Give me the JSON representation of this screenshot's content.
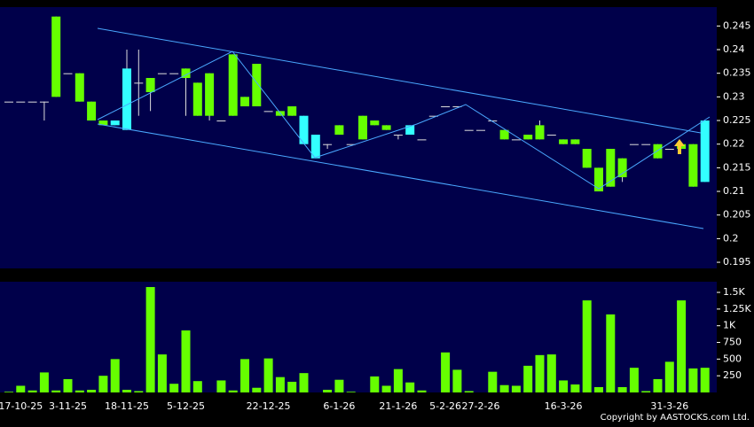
{
  "chart_data": [
    {
      "type": "candlestick",
      "categories": [
        null,
        "17-10-25",
        null,
        null,
        null,
        "3-11-25",
        null,
        null,
        null,
        null,
        "18-11-25",
        null,
        null,
        null,
        null,
        "5-12-25",
        null,
        null,
        null,
        null,
        null,
        null,
        "22-12-25",
        null,
        null,
        null,
        null,
        null,
        "6-1-26",
        null,
        null,
        null,
        null,
        "21-1-26",
        null,
        null,
        null,
        "5-2-26",
        null,
        null,
        "27-2-26",
        null,
        null,
        null,
        null,
        null,
        null,
        "16-3-26",
        null,
        null,
        null,
        null,
        null,
        null,
        null,
        null,
        "31-3-26",
        null,
        null,
        null
      ],
      "open": [
        0.229,
        0.229,
        0.229,
        0.229,
        0.23,
        0.235,
        0.229,
        0.225,
        0.224,
        0.225,
        0.236,
        0.233,
        0.231,
        0.235,
        0.235,
        0.234,
        0.226,
        0.226,
        0.225,
        0.226,
        0.228,
        0.228,
        0.227,
        0.226,
        0.226,
        0.226,
        0.222,
        0.22,
        0.222,
        0.22,
        0.221,
        0.224,
        0.223,
        0.222,
        0.224,
        0.221,
        0.226,
        0.228,
        0.228,
        0.223,
        0.223,
        0.225,
        0.221,
        0.221,
        0.221,
        0.221,
        0.222,
        0.22,
        0.22,
        0.215,
        0.21,
        0.211,
        0.213,
        0.22,
        0.22,
        0.217,
        0.219,
        0.219,
        0.211,
        0.225
      ],
      "high": [
        0.229,
        0.229,
        0.229,
        0.229,
        0.247,
        0.235,
        0.235,
        0.229,
        0.225,
        0.225,
        0.24,
        0.24,
        0.234,
        0.235,
        0.235,
        0.236,
        0.233,
        0.235,
        0.225,
        0.239,
        0.23,
        0.237,
        0.227,
        0.227,
        0.228,
        0.226,
        0.222,
        0.22,
        0.224,
        0.22,
        0.226,
        0.225,
        0.224,
        0.222,
        0.224,
        0.221,
        0.226,
        0.228,
        0.228,
        0.223,
        0.223,
        0.225,
        0.223,
        0.221,
        0.222,
        0.225,
        0.222,
        0.221,
        0.221,
        0.219,
        0.215,
        0.219,
        0.217,
        0.22,
        0.22,
        0.22,
        0.219,
        0.22,
        0.22,
        0.225
      ],
      "low": [
        0.229,
        0.229,
        0.229,
        0.225,
        0.23,
        0.235,
        0.229,
        0.225,
        0.224,
        0.224,
        0.223,
        0.226,
        0.227,
        0.235,
        0.235,
        0.226,
        0.226,
        0.225,
        0.225,
        0.226,
        0.228,
        0.228,
        0.227,
        0.226,
        0.226,
        0.22,
        0.217,
        0.219,
        0.222,
        0.22,
        0.221,
        0.224,
        0.223,
        0.221,
        0.222,
        0.221,
        0.226,
        0.228,
        0.228,
        0.223,
        0.223,
        0.225,
        0.221,
        0.221,
        0.221,
        0.221,
        0.222,
        0.22,
        0.22,
        0.215,
        0.21,
        0.211,
        0.212,
        0.22,
        0.22,
        0.217,
        0.219,
        0.219,
        0.211,
        0.212
      ],
      "close": [
        0.229,
        0.229,
        0.229,
        0.229,
        0.247,
        0.235,
        0.235,
        0.229,
        0.225,
        0.224,
        0.223,
        0.233,
        0.234,
        0.235,
        0.235,
        0.236,
        0.233,
        0.235,
        0.225,
        0.239,
        0.23,
        0.237,
        0.227,
        0.227,
        0.228,
        0.22,
        0.217,
        0.22,
        0.224,
        0.22,
        0.226,
        0.225,
        0.224,
        0.222,
        0.222,
        0.221,
        0.226,
        0.228,
        0.228,
        0.223,
        0.223,
        0.225,
        0.223,
        0.221,
        0.222,
        0.224,
        0.222,
        0.221,
        0.221,
        0.219,
        0.215,
        0.219,
        0.217,
        0.22,
        0.22,
        0.22,
        0.219,
        0.22,
        0.22,
        0.212
      ],
      "up_color": "#66ff00",
      "down_color": "#33ffff",
      "ylim": [
        0.1937,
        0.249
      ],
      "yticks": [
        0.195,
        0.2,
        0.205,
        0.21,
        0.215,
        0.22,
        0.225,
        0.23,
        0.235,
        0.24,
        0.245
      ]
    },
    {
      "type": "bar",
      "values": [
        10,
        100,
        30,
        300,
        30,
        200,
        30,
        40,
        250,
        500,
        40,
        20,
        1580,
        570,
        130,
        930,
        170,
        0,
        180,
        30,
        500,
        70,
        510,
        230,
        160,
        290,
        0,
        40,
        190,
        10,
        0,
        240,
        100,
        350,
        150,
        30,
        0,
        600,
        340,
        20,
        0,
        310,
        110,
        100,
        400,
        560,
        570,
        180,
        120,
        1380,
        80,
        1170,
        80,
        370,
        20,
        200,
        460,
        1380,
        360,
        370
      ],
      "color": "#66ff00",
      "ylim": [
        0,
        1660
      ],
      "yticks": [
        250,
        500,
        750,
        {
          "value": 1000,
          "label": "1K"
        },
        {
          "value": 1250,
          "label": "1.25K"
        },
        {
          "value": 1500,
          "label": "1.5K"
        }
      ]
    }
  ],
  "footer": "Copyright by AASTOCKS.com Ltd."
}
